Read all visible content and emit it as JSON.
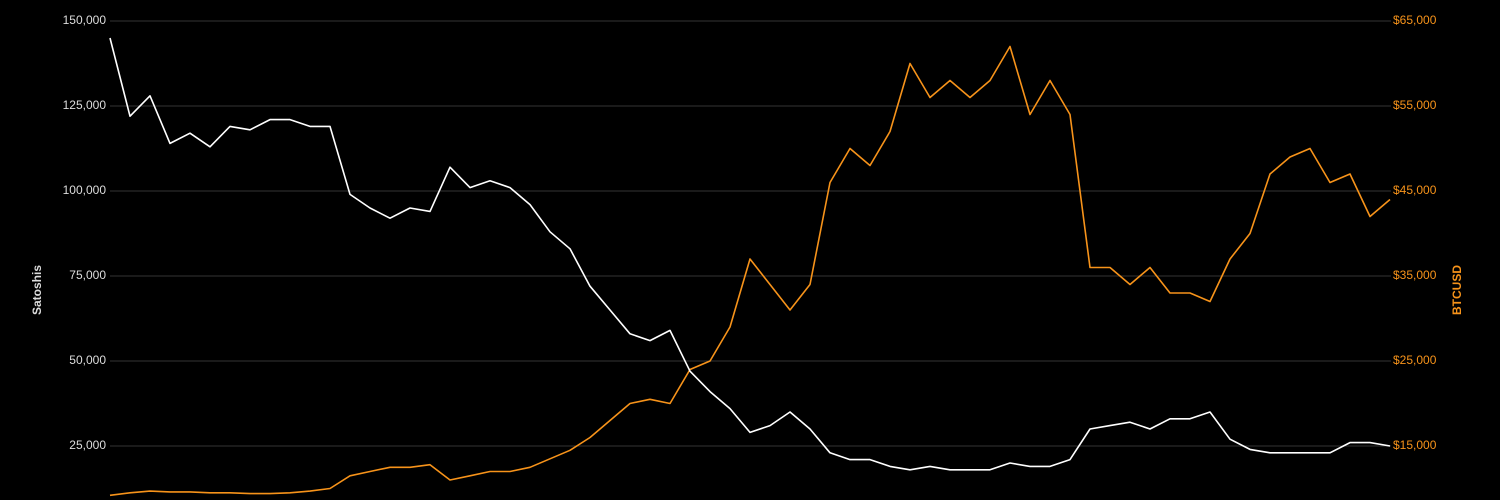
{
  "chart_data": {
    "type": "line",
    "ylabel": "Satoshis",
    "y2label": "BTCUSD",
    "ylim": [
      10000,
      150000
    ],
    "yticks": [
      {
        "value": 25000,
        "label": "25,000"
      },
      {
        "value": 50000,
        "label": "50,000"
      },
      {
        "value": 75000,
        "label": "75,000"
      },
      {
        "value": 100000,
        "label": "100,000"
      },
      {
        "value": 125000,
        "label": "125,000"
      },
      {
        "value": 150000,
        "label": "150,000"
      }
    ],
    "y2lim": [
      9000,
      65000
    ],
    "y2ticks": [
      {
        "value": 15000,
        "label": "$15,000"
      },
      {
        "value": 25000,
        "label": "$25,000"
      },
      {
        "value": 35000,
        "label": "$35,000"
      },
      {
        "value": 45000,
        "label": "$45,000"
      },
      {
        "value": 55000,
        "label": "$55,000"
      },
      {
        "value": 65000,
        "label": "$65,000"
      }
    ],
    "grid": true,
    "series": [
      {
        "name": "Satoshis",
        "color": "#ffffff",
        "values": [
          145000,
          122000,
          128000,
          114000,
          117000,
          113000,
          119000,
          118000,
          121000,
          121000,
          119000,
          119000,
          99000,
          95000,
          92000,
          95000,
          94000,
          107000,
          101000,
          103000,
          101000,
          96000,
          88000,
          83000,
          72000,
          65000,
          58000,
          56000,
          59000,
          47000,
          41000,
          36000,
          29000,
          31000,
          35000,
          30000,
          23000,
          21000,
          21000,
          19000,
          18000,
          19000,
          18000,
          18000,
          18000,
          20000,
          19000,
          19000,
          21000,
          30000,
          31000,
          32000,
          30000,
          33000,
          33000,
          35000,
          27000,
          24000,
          23000,
          23000,
          23000,
          23000,
          26000,
          26000,
          25000
        ]
      },
      {
        "name": "BTCUSD",
        "color": "#f7931a",
        "axis": "y2",
        "values": [
          9200,
          9500,
          9700,
          9600,
          9600,
          9500,
          9500,
          9400,
          9400,
          9500,
          9700,
          10000,
          11500,
          12000,
          12500,
          12500,
          12800,
          11000,
          11500,
          12000,
          12000,
          12500,
          13500,
          14500,
          16000,
          18000,
          20000,
          20500,
          20000,
          24000,
          25000,
          29000,
          37000,
          34000,
          31000,
          34000,
          46000,
          50000,
          48000,
          52000,
          60000,
          56000,
          58000,
          56000,
          58000,
          62000,
          54000,
          58000,
          54000,
          36000,
          36000,
          34000,
          36000,
          33000,
          33000,
          32000,
          37000,
          40000,
          47000,
          49000,
          50000,
          46000,
          47000,
          42000,
          44000
        ]
      }
    ]
  }
}
